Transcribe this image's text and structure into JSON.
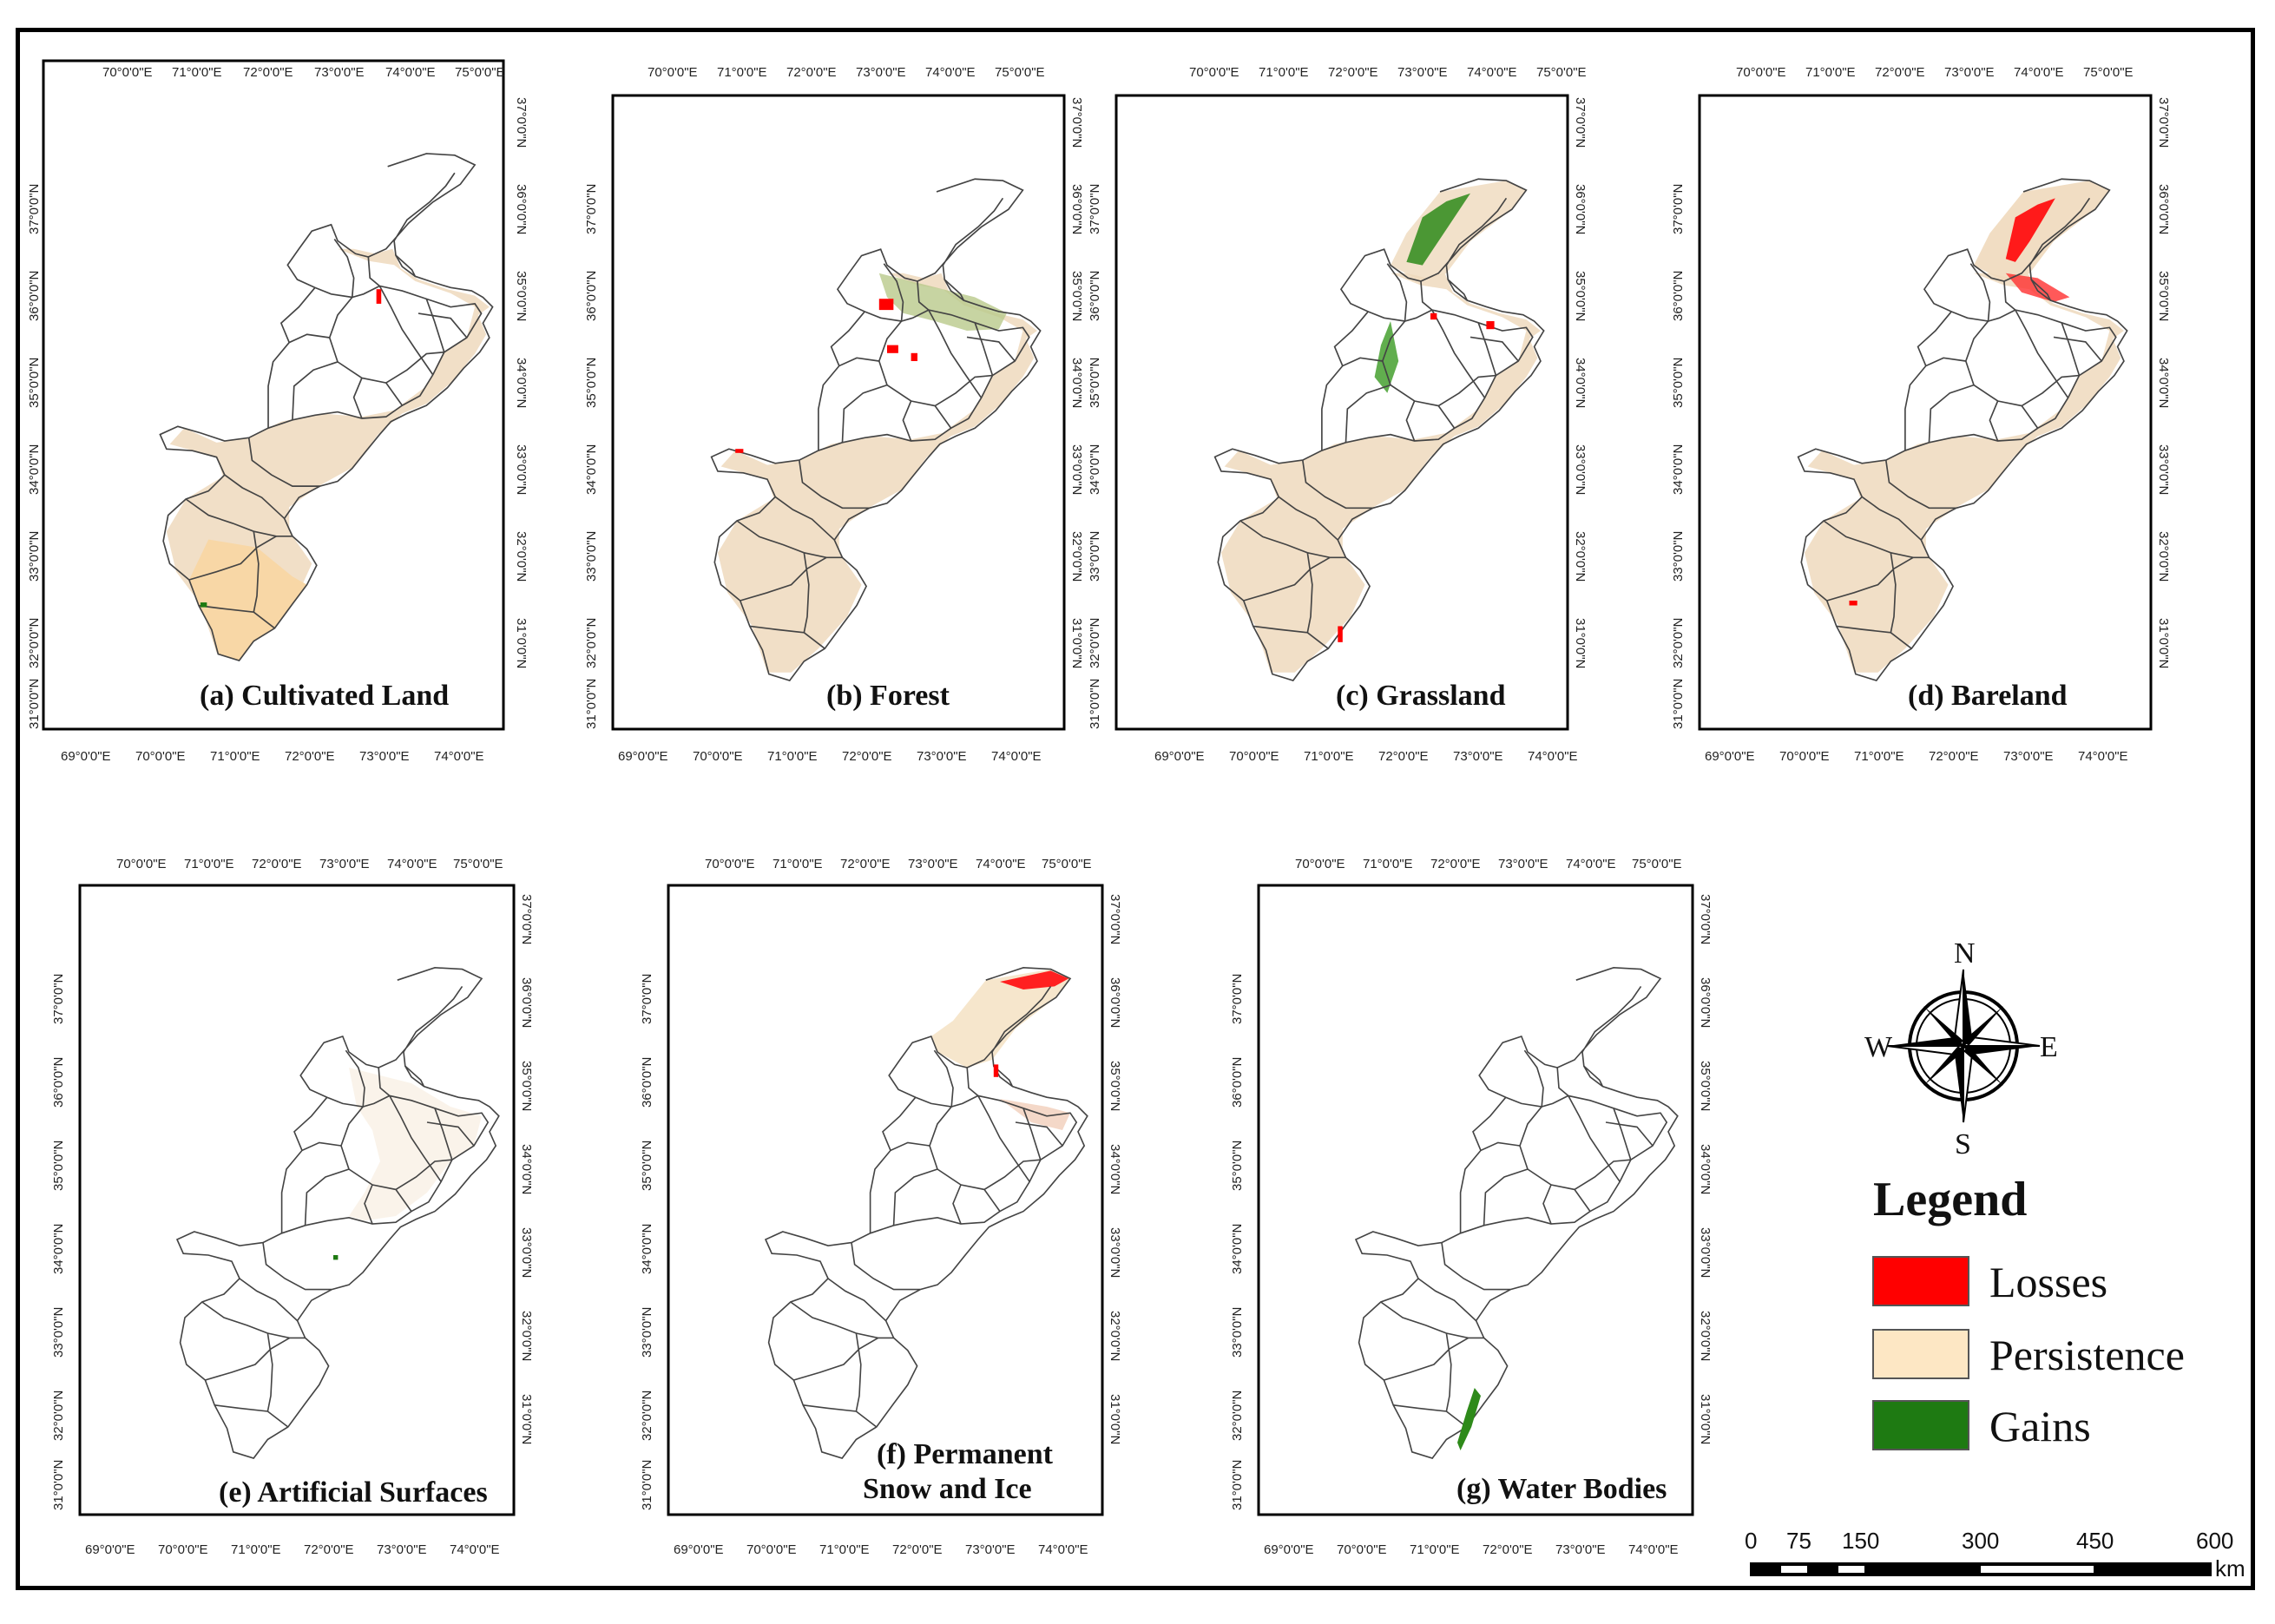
{
  "top_lon_labels": [
    "70°0'0\"E",
    "71°0'0\"E",
    "72°0'0\"E",
    "73°0'0\"E",
    "74°0'0\"E",
    "75°0'0\"E"
  ],
  "bottom_lon_labels": [
    "69°0'0\"E",
    "70°0'0\"E",
    "71°0'0\"E",
    "72°0'0\"E",
    "73°0'0\"E",
    "74°0'0\"E"
  ],
  "left_lat_labels": [
    "37°0'0\"N",
    "36°0'0\"N",
    "35°0'0\"N",
    "34°0'0\"N",
    "33°0'0\"N",
    "32°0'0\"N",
    "31°0'0\"N"
  ],
  "right_lat_labels": [
    "37°0'0\"N",
    "36°0'0\"N",
    "35°0'0\"N",
    "34°0'0\"N",
    "33°0'0\"N",
    "32°0'0\"N",
    "31°0'0\"N"
  ],
  "panels": [
    {
      "id": "a",
      "title": "(a) Cultivated Land"
    },
    {
      "id": "b",
      "title": "(b) Forest"
    },
    {
      "id": "c",
      "title": "(c) Grassland"
    },
    {
      "id": "d",
      "title": "(d) Bareland"
    },
    {
      "id": "e",
      "title": "(e) Artificial Surfaces"
    },
    {
      "id": "f",
      "title_line1": "(f) Permanent",
      "title_line2": "Snow and Ice"
    },
    {
      "id": "g",
      "title": "(g) Water Bodies"
    }
  ],
  "compass": {
    "n": "N",
    "s": "S",
    "e": "E",
    "w": "W"
  },
  "legend": {
    "title": "Legend",
    "items": [
      {
        "label": "Losses",
        "color": "#ff0000"
      },
      {
        "label": "Persistence",
        "color": "#fde7c4"
      },
      {
        "label": "Gains",
        "color": "#1e7a12"
      }
    ]
  },
  "scale_bar": {
    "labels": [
      "0",
      "75",
      "150",
      "300",
      "450",
      "600"
    ],
    "unit": "km"
  },
  "colors": {
    "persistence_fill": "#f1dcc0",
    "loss": "#ff0000",
    "gain": "#1e7a12",
    "outline": "#444444"
  }
}
